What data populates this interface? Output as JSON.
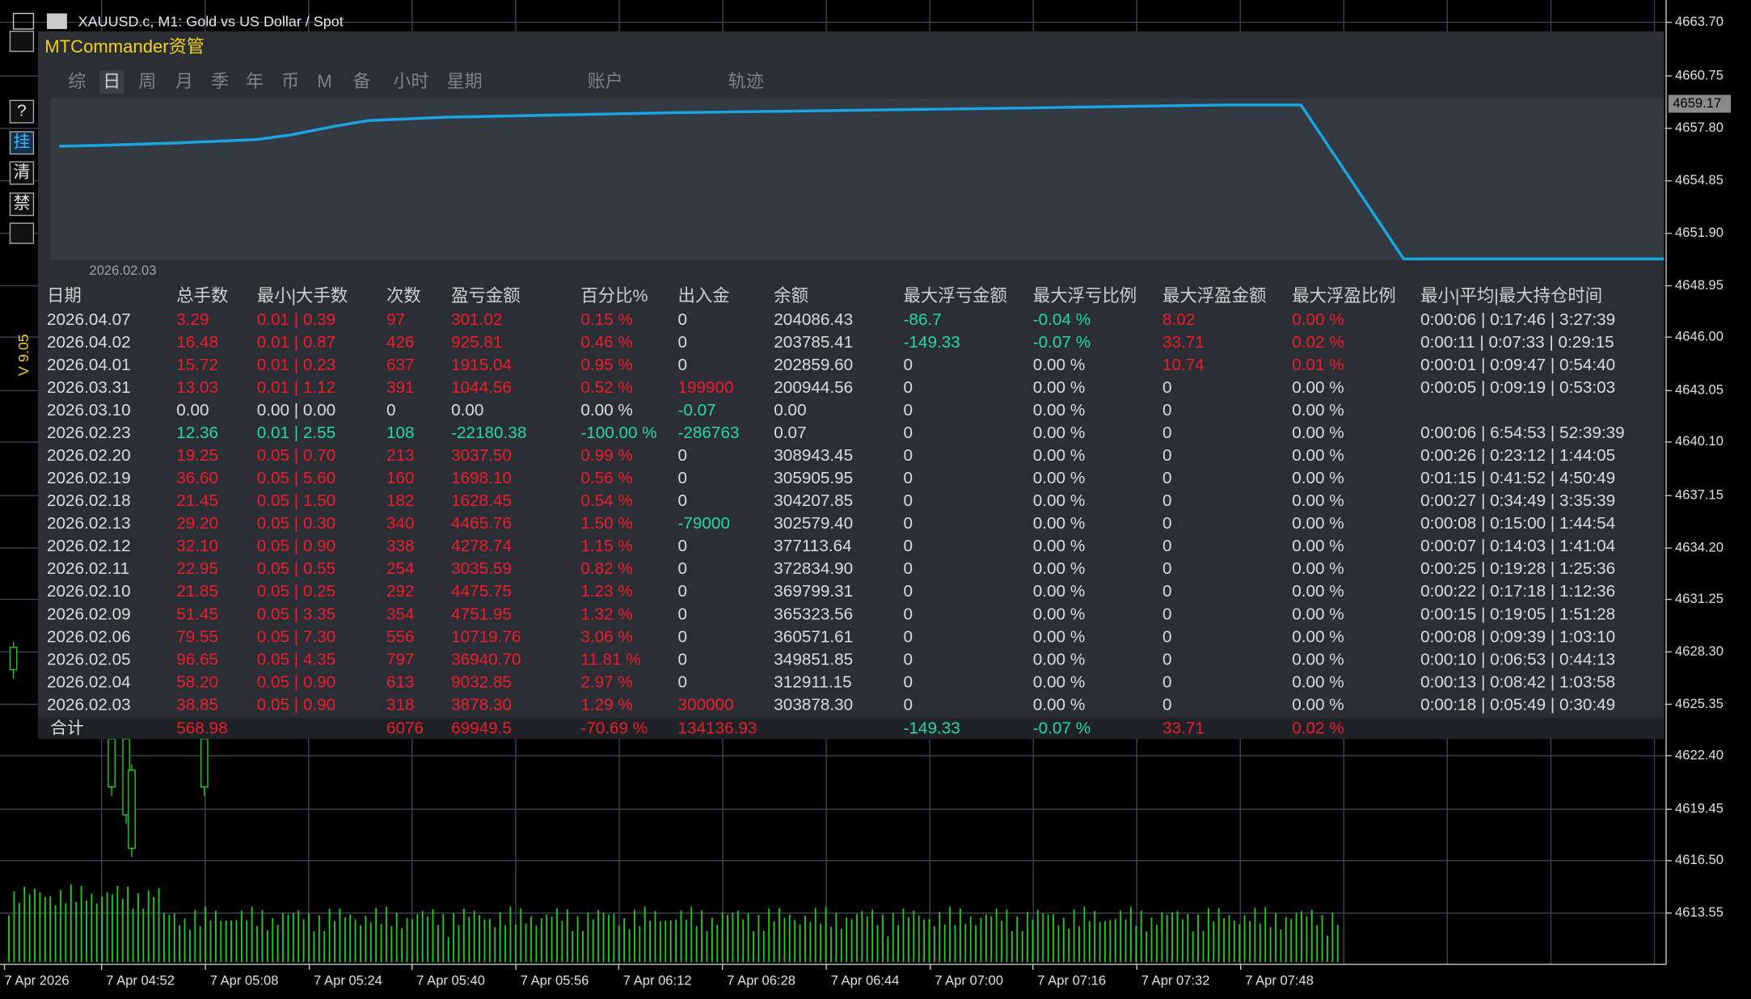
{
  "header": {
    "symbol": "XAUUSD.c, M1:  Gold vs US Dollar / Spot"
  },
  "price_axis": {
    "labels": [
      "4663.70",
      "4660.75",
      "4657.80",
      "4654.85",
      "4651.90",
      "4648.95",
      "4646.00",
      "4643.05",
      "4640.10",
      "4637.15",
      "4634.20",
      "4631.25",
      "4628.30",
      "4625.35",
      "4622.40",
      "4619.45",
      "4616.50",
      "4613.55"
    ],
    "current": "4659.17"
  },
  "time_axis": {
    "labels": [
      "7 Apr 2026",
      "7 Apr 04:52",
      "7 Apr 05:08",
      "7 Apr 05:24",
      "7 Apr 05:40",
      "7 Apr 05:56",
      "7 Apr 06:12",
      "7 Apr 06:28",
      "7 Apr 06:44",
      "7 Apr 07:00",
      "7 Apr 07:16",
      "7 Apr 07:32",
      "7 Apr 07:48"
    ]
  },
  "toolbar": {
    "buttons": [
      "?",
      "挂",
      "清",
      "禁"
    ],
    "version": "V 9.05"
  },
  "panel": {
    "title": "MTCommander资管",
    "tabs": [
      "综",
      "日",
      "周",
      "月",
      "季",
      "年",
      "币",
      "M",
      "备",
      "小时",
      "星期",
      "账户",
      "轨迹"
    ],
    "active_tab": "日",
    "equity_start_label": "2026.02.03"
  },
  "colors": {
    "positive": "#ee1c2c",
    "negative": "#26d7a8",
    "neutral": "#dcdcdc",
    "title": "#f2d21b"
  },
  "table": {
    "columns": [
      "日期",
      "总手数",
      "最小|大手数",
      "次数",
      "盈亏金额",
      "百分比%",
      "出入金",
      "余额",
      "最大浮亏金额",
      "最大浮亏比例",
      "最大浮盈金额",
      "最大浮盈比例",
      "最小|平均|最大持仓时间"
    ],
    "rows": [
      [
        "2026.04.07",
        "3.29",
        "0.01 | 0.39",
        "97",
        "301.02",
        "0.15 %",
        "0",
        "204086.43",
        "-86.7",
        "-0.04 %",
        "8.02",
        "0.00 %",
        "0:00:06 | 0:17:46 | 3:27:39"
      ],
      [
        "2026.04.02",
        "16.48",
        "0.01 | 0.87",
        "426",
        "925.81",
        "0.46 %",
        "0",
        "203785.41",
        "-149.33",
        "-0.07 %",
        "33.71",
        "0.02 %",
        "0:00:11 | 0:07:33 | 0:29:15"
      ],
      [
        "2026.04.01",
        "15.72",
        "0.01 | 0.23",
        "637",
        "1915.04",
        "0.95 %",
        "0",
        "202859.60",
        "0",
        "0.00 %",
        "10.74",
        "0.01 %",
        "0:00:01 | 0:09:47 | 0:54:40"
      ],
      [
        "2026.03.31",
        "13.03",
        "0.01 | 1.12",
        "391",
        "1044.56",
        "0.52 %",
        "199900",
        "200944.56",
        "0",
        "0.00 %",
        "0",
        "0.00 %",
        "0:00:05 | 0:09:19 | 0:53:03"
      ],
      [
        "2026.03.10",
        "0.00",
        "0.00 | 0.00",
        "0",
        "0.00",
        "0.00 %",
        "-0.07",
        "0.00",
        "0",
        "0.00 %",
        "0",
        "0.00 %",
        null
      ],
      [
        "2026.02.23",
        "12.36",
        "0.01 | 2.55",
        "108",
        "-22180.38",
        "-100.00 %",
        "-286763",
        "0.07",
        "0",
        "0.00 %",
        "0",
        "0.00 %",
        "0:00:06 | 6:54:53 | 52:39:39"
      ],
      [
        "2026.02.20",
        "19.25",
        "0.05 | 0.70",
        "213",
        "3037.50",
        "0.99 %",
        "0",
        "308943.45",
        "0",
        "0.00 %",
        "0",
        "0.00 %",
        "0:00:26 | 0:23:12 | 1:44:05"
      ],
      [
        "2026.02.19",
        "36.60",
        "0.05 | 5.60",
        "160",
        "1698.10",
        "0.56 %",
        "0",
        "305905.95",
        "0",
        "0.00 %",
        "0",
        "0.00 %",
        "0:01:15 | 0:41:52 | 4:50:49"
      ],
      [
        "2026.02.18",
        "21.45",
        "0.05 | 1.50",
        "182",
        "1628.45",
        "0.54 %",
        "0",
        "304207.85",
        "0",
        "0.00 %",
        "0",
        "0.00 %",
        "0:00:27 | 0:34:49 | 3:35:39"
      ],
      [
        "2026.02.13",
        "29.20",
        "0.05 | 0.30",
        "340",
        "4465.76",
        "1.50 %",
        "-79000",
        "302579.40",
        "0",
        "0.00 %",
        "0",
        "0.00 %",
        "0:00:08 | 0:15:00 | 1:44:54"
      ],
      [
        "2026.02.12",
        "32.10",
        "0.05 | 0.90",
        "338",
        "4278.74",
        "1.15 %",
        "0",
        "377113.64",
        "0",
        "0.00 %",
        "0",
        "0.00 %",
        "0:00:07 | 0:14:03 | 1:41:04"
      ],
      [
        "2026.02.11",
        "22.95",
        "0.05 | 0.55",
        "254",
        "3035.59",
        "0.82 %",
        "0",
        "372834.90",
        "0",
        "0.00 %",
        "0",
        "0.00 %",
        "0:00:25 | 0:19:28 | 1:25:36"
      ],
      [
        "2026.02.10",
        "21.85",
        "0.05 | 0.25",
        "292",
        "4475.75",
        "1.23 %",
        "0",
        "369799.31",
        "0",
        "0.00 %",
        "0",
        "0.00 %",
        "0:00:22 | 0:17:18 | 1:12:36"
      ],
      [
        "2026.02.09",
        "51.45",
        "0.05 | 3.35",
        "354",
        "4751.95",
        "1.32 %",
        "0",
        "365323.56",
        "0",
        "0.00 %",
        "0",
        "0.00 %",
        "0:00:15 | 0:19:05 | 1:51:28"
      ],
      [
        "2026.02.06",
        "79.55",
        "0.05 | 7.30",
        "556",
        "10719.76",
        "3.06 %",
        "0",
        "360571.61",
        "0",
        "0.00 %",
        "0",
        "0.00 %",
        "0:00:08 | 0:09:39 | 1:03:10"
      ],
      [
        "2026.02.05",
        "96.65",
        "0.05 | 4.35",
        "797",
        "36940.70",
        "11.81 %",
        "0",
        "349851.85",
        "0",
        "0.00 %",
        "0",
        "0.00 %",
        "0:00:10 | 0:06:53 | 0:44:13"
      ],
      [
        "2026.02.04",
        "58.20",
        "0.05 | 0.90",
        "613",
        "9032.85",
        "2.97 %",
        "0",
        "312911.15",
        "0",
        "0.00 %",
        "0",
        "0.00 %",
        "0:00:13 | 0:08:42 | 1:03:58"
      ],
      [
        "2026.02.03",
        "38.85",
        "0.05 | 0.90",
        "318",
        "3878.30",
        "1.29 %",
        "300000",
        "303878.30",
        "0",
        "0.00 %",
        "0",
        "0.00 %",
        "0:00:18 | 0:05:49 | 0:30:49"
      ]
    ],
    "total": [
      "合计",
      "568.98",
      null,
      "6076",
      "69949.5",
      "-70.69 %",
      "134136.93",
      null,
      "-149.33",
      "-0.07 %",
      "33.71",
      "0.02 %",
      null
    ]
  }
}
